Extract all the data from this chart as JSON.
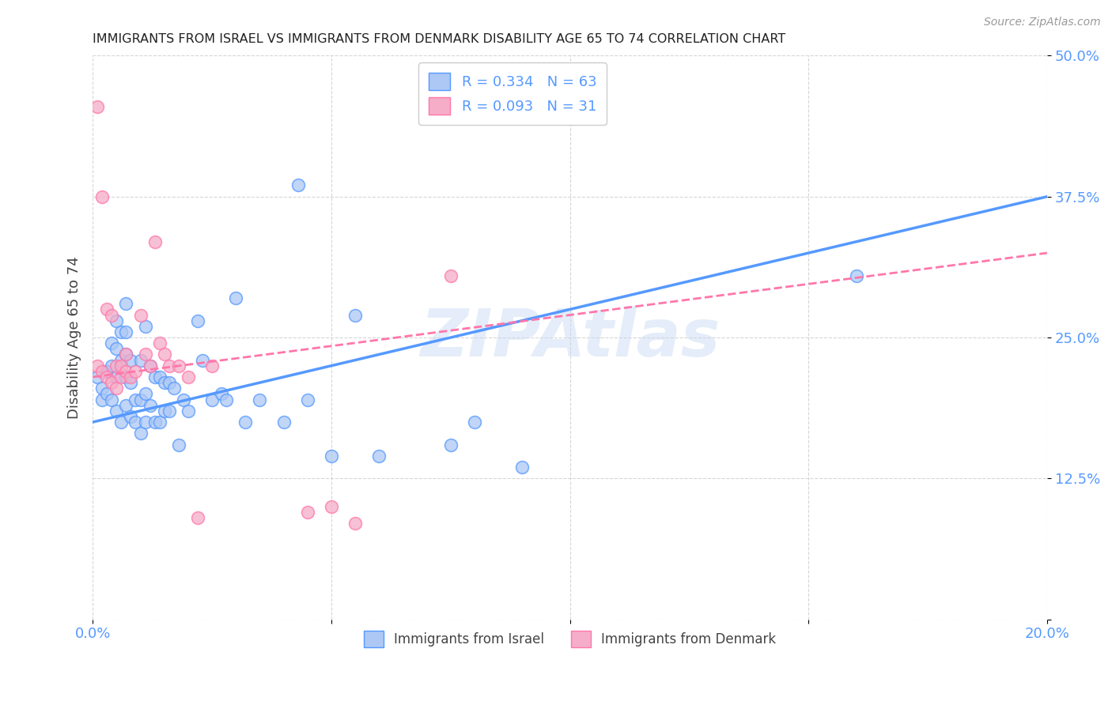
{
  "title": "IMMIGRANTS FROM ISRAEL VS IMMIGRANTS FROM DENMARK DISABILITY AGE 65 TO 74 CORRELATION CHART",
  "source": "Source: ZipAtlas.com",
  "ylabel": "Disability Age 65 to 74",
  "xlabel": "",
  "watermark": "ZIPAtlas",
  "israel_R": 0.334,
  "israel_N": 63,
  "denmark_R": 0.093,
  "denmark_N": 31,
  "israel_color": "#adc8f5",
  "denmark_color": "#f5adc8",
  "israel_line_color": "#5599ff",
  "denmark_line_color": "#ff77aa",
  "xlim": [
    0.0,
    0.2
  ],
  "ylim": [
    0.0,
    0.5
  ],
  "xticks": [
    0.0,
    0.05,
    0.1,
    0.15,
    0.2
  ],
  "xticklabels": [
    "0.0%",
    "",
    "",
    "",
    "20.0%"
  ],
  "yticks": [
    0.0,
    0.125,
    0.25,
    0.375,
    0.5
  ],
  "yticklabels": [
    "",
    "12.5%",
    "25.0%",
    "37.5%",
    "50.0%"
  ],
  "israel_line_b": 0.175,
  "israel_line_m": 1.0,
  "denmark_line_b": 0.215,
  "denmark_line_m": 0.55,
  "israel_x": [
    0.001,
    0.002,
    0.002,
    0.003,
    0.003,
    0.004,
    0.004,
    0.004,
    0.005,
    0.005,
    0.005,
    0.005,
    0.006,
    0.006,
    0.006,
    0.007,
    0.007,
    0.007,
    0.007,
    0.007,
    0.008,
    0.008,
    0.008,
    0.009,
    0.009,
    0.01,
    0.01,
    0.01,
    0.011,
    0.011,
    0.011,
    0.012,
    0.012,
    0.013,
    0.013,
    0.014,
    0.014,
    0.015,
    0.015,
    0.016,
    0.016,
    0.017,
    0.018,
    0.019,
    0.02,
    0.022,
    0.023,
    0.025,
    0.027,
    0.028,
    0.03,
    0.032,
    0.035,
    0.04,
    0.043,
    0.045,
    0.05,
    0.055,
    0.06,
    0.075,
    0.08,
    0.09,
    0.16
  ],
  "israel_y": [
    0.215,
    0.205,
    0.195,
    0.22,
    0.2,
    0.245,
    0.225,
    0.195,
    0.265,
    0.24,
    0.215,
    0.185,
    0.255,
    0.23,
    0.175,
    0.28,
    0.255,
    0.235,
    0.215,
    0.19,
    0.23,
    0.21,
    0.18,
    0.195,
    0.175,
    0.23,
    0.195,
    0.165,
    0.26,
    0.2,
    0.175,
    0.225,
    0.19,
    0.215,
    0.175,
    0.215,
    0.175,
    0.21,
    0.185,
    0.21,
    0.185,
    0.205,
    0.155,
    0.195,
    0.185,
    0.265,
    0.23,
    0.195,
    0.2,
    0.195,
    0.285,
    0.175,
    0.195,
    0.175,
    0.385,
    0.195,
    0.145,
    0.27,
    0.145,
    0.155,
    0.175,
    0.135,
    0.305
  ],
  "denmark_x": [
    0.001,
    0.001,
    0.002,
    0.002,
    0.003,
    0.003,
    0.004,
    0.004,
    0.005,
    0.005,
    0.006,
    0.006,
    0.007,
    0.007,
    0.008,
    0.009,
    0.01,
    0.011,
    0.012,
    0.013,
    0.014,
    0.015,
    0.016,
    0.018,
    0.02,
    0.022,
    0.025,
    0.045,
    0.05,
    0.055,
    0.075
  ],
  "denmark_y": [
    0.455,
    0.225,
    0.375,
    0.22,
    0.275,
    0.215,
    0.27,
    0.21,
    0.225,
    0.205,
    0.225,
    0.215,
    0.235,
    0.22,
    0.215,
    0.22,
    0.27,
    0.235,
    0.225,
    0.335,
    0.245,
    0.235,
    0.225,
    0.225,
    0.215,
    0.09,
    0.225,
    0.095,
    0.1,
    0.085,
    0.305
  ]
}
